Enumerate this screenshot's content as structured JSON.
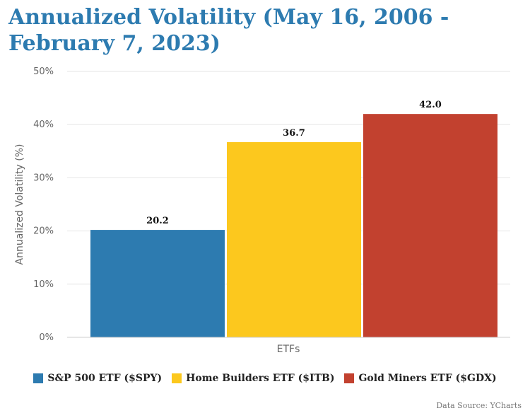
{
  "title": "Annualized Volatility (May 16, 2006 - February 7, 2023)",
  "source": "Data Source: YCharts",
  "chart_data": {
    "type": "bar",
    "title": "Annualized Volatility (May 16, 2006 - February 7, 2023)",
    "xlabel": "ETFs",
    "ylabel": "Annualized Volatility (%)",
    "ylim": [
      0,
      50
    ],
    "yticks": [
      "0%",
      "10%",
      "20%",
      "30%",
      "40%",
      "50%"
    ],
    "grid": true,
    "legend_position": "bottom",
    "categories": [
      "ETFs"
    ],
    "series": [
      {
        "name": "S&P 500 ETF ($SPY)",
        "values": [
          20.2
        ],
        "label": "20.2",
        "color": "#2d7bb0"
      },
      {
        "name": "Home Builders ETF ($ITB)",
        "values": [
          36.7
        ],
        "label": "36.7",
        "color": "#fcc81e"
      },
      {
        "name": "Gold Miners ETF ($GDX)",
        "values": [
          42.0
        ],
        "label": "42.0",
        "color": "#c2412f"
      }
    ]
  }
}
